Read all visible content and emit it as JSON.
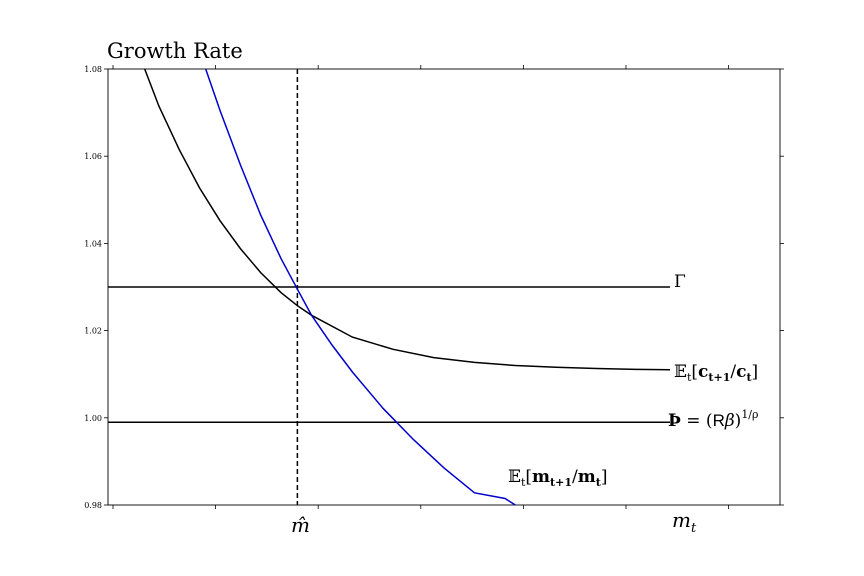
{
  "chart_data": {
    "type": "line",
    "title": "Growth Rate",
    "xlabel": "",
    "ylabel": "",
    "ylim": [
      0.98,
      1.08
    ],
    "xlim": [
      0.0,
      3.3
    ],
    "y_ticks": [
      "0.98",
      "1.00",
      "1.02",
      "1.04",
      "1.06",
      "1.08"
    ],
    "x_tick_labels": [
      {
        "x": 0.93,
        "label": "m̂"
      },
      {
        "x": 2.95,
        "label": "m_t"
      }
    ],
    "grid": false,
    "marker_line": {
      "x": 0.93,
      "style": "dashed",
      "label": "m̂"
    },
    "series": [
      {
        "id": "gamma",
        "label_text": "Γ",
        "color": "#000000",
        "x": [
          0.0,
          2.76
        ],
        "y": [
          1.03,
          1.03
        ]
      },
      {
        "id": "thorn",
        "label_text": "Þ = (Rβ)^{1/ρ}",
        "color": "#000000",
        "x": [
          0.0,
          2.76
        ],
        "y": [
          0.999,
          0.999
        ]
      },
      {
        "id": "consumption_growth",
        "label_text": "𝔼t[ct+1/ct]",
        "color": "#000000",
        "x": [
          0.18,
          0.25,
          0.35,
          0.45,
          0.55,
          0.65,
          0.75,
          0.85,
          0.93,
          1.0,
          1.2,
          1.4,
          1.6,
          1.8,
          2.0,
          2.2,
          2.4,
          2.6,
          2.76
        ],
        "y": [
          1.08,
          1.0715,
          1.0615,
          1.0527,
          1.0452,
          1.0388,
          1.0333,
          1.0287,
          1.0257,
          1.0235,
          1.0185,
          1.0157,
          1.0138,
          1.0127,
          1.012,
          1.0116,
          1.0113,
          1.0111,
          1.011
        ]
      },
      {
        "id": "market_resources_growth",
        "label_text": "𝔼t[mt+1/mt]",
        "color": "#0000cc",
        "x": [
          0.48,
          0.55,
          0.65,
          0.75,
          0.85,
          0.93,
          1.0,
          1.1,
          1.2,
          1.35,
          1.5,
          1.65,
          1.8,
          1.95,
          2.0
        ],
        "y": [
          1.08,
          1.0705,
          1.058,
          1.0465,
          1.0365,
          1.0295,
          1.0235,
          1.0167,
          1.0105,
          1.0022,
          0.995,
          0.9885,
          0.9828,
          0.9815,
          0.98
        ]
      }
    ]
  }
}
